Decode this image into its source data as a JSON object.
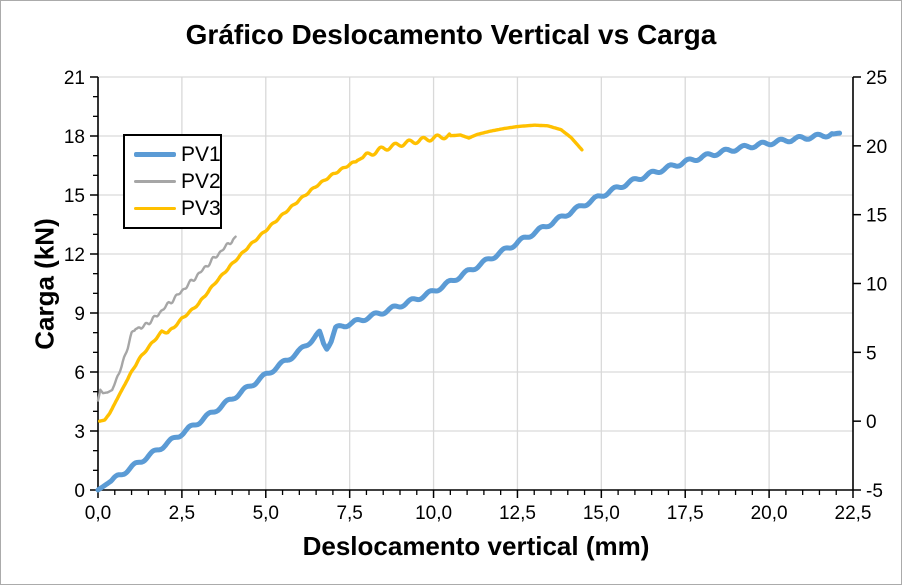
{
  "chart_data": {
    "type": "line",
    "title": "Gráfico Deslocamento Vertical vs Carga",
    "xlabel": "Deslocamento vertical (mm)",
    "ylabel": "Carga (kN)",
    "grid": true,
    "legend_position": "upper-left-inside",
    "colors": {
      "background": "#FFFFFF",
      "grid": "#D9D9D9",
      "axis": "#000000",
      "text": "#000000",
      "chart_border": "#ABABAB"
    },
    "x_axis": {
      "min": 0,
      "max": 22.5,
      "major": 2.5,
      "minor": 0.5,
      "tick_labels": [
        "0,0",
        "2,5",
        "5,0",
        "7,5",
        "10,0",
        "12,5",
        "15,0",
        "17,5",
        "20,0",
        "22,5"
      ]
    },
    "y_axis_left": {
      "min": 0,
      "max": 21,
      "major": 3,
      "minor": 1,
      "tick_labels": [
        "0",
        "3",
        "6",
        "9",
        "12",
        "15",
        "18",
        "21"
      ]
    },
    "y_axis_right": {
      "min": -5,
      "max": 25,
      "major": 5,
      "tick_labels": [
        "-5",
        "0",
        "5",
        "10",
        "15",
        "20",
        "25"
      ]
    },
    "series": [
      {
        "name": "PV1",
        "color": "#5B9BD5",
        "width": 5,
        "points": [
          [
            0,
            0
          ],
          [
            0.5,
            0.58
          ],
          [
            1,
            1.15
          ],
          [
            1.5,
            1.72
          ],
          [
            2,
            2.3
          ],
          [
            2.5,
            2.88
          ],
          [
            3,
            3.45
          ],
          [
            3.5,
            4.05
          ],
          [
            4,
            4.65
          ],
          [
            4.5,
            5.25
          ],
          [
            5,
            5.85
          ],
          [
            5.5,
            6.45
          ],
          [
            6,
            7.05
          ],
          [
            6.35,
            7.6
          ],
          [
            6.6,
            7.98
          ],
          [
            6.72,
            7.45
          ],
          [
            6.82,
            7.25
          ],
          [
            6.95,
            7.6
          ],
          [
            7.08,
            8.2
          ],
          [
            7.3,
            8.35
          ],
          [
            7.6,
            8.5
          ],
          [
            8,
            8.75
          ],
          [
            8.5,
            9.05
          ],
          [
            9,
            9.38
          ],
          [
            9.5,
            9.72
          ],
          [
            10,
            10.1
          ],
          [
            10.5,
            10.58
          ],
          [
            11,
            11.08
          ],
          [
            11.5,
            11.58
          ],
          [
            12,
            12.08
          ],
          [
            12.5,
            12.58
          ],
          [
            13,
            13.08
          ],
          [
            13.5,
            13.56
          ],
          [
            14,
            14.05
          ],
          [
            14.5,
            14.52
          ],
          [
            15,
            14.97
          ],
          [
            15.5,
            15.38
          ],
          [
            16,
            15.76
          ],
          [
            16.5,
            16.1
          ],
          [
            17,
            16.4
          ],
          [
            17.5,
            16.68
          ],
          [
            18,
            16.93
          ],
          [
            18.5,
            17.15
          ],
          [
            19,
            17.34
          ],
          [
            19.5,
            17.5
          ],
          [
            20,
            17.64
          ],
          [
            20.5,
            17.78
          ],
          [
            21,
            17.9
          ],
          [
            21.5,
            18.0
          ],
          [
            22.1,
            18.15
          ]
        ],
        "ripples": [
          {
            "amp": 0.1,
            "period": 0.55,
            "from": 0.4,
            "to": 21.9
          }
        ]
      },
      {
        "name": "PV2",
        "color": "#A6A6A6",
        "width": 2.4,
        "points": [
          [
            0,
            4.55
          ],
          [
            0.07,
            5.1
          ],
          [
            0.15,
            4.92
          ],
          [
            0.28,
            4.96
          ],
          [
            0.42,
            5.08
          ],
          [
            0.55,
            5.6
          ],
          [
            0.7,
            6.3
          ],
          [
            0.85,
            7.05
          ],
          [
            1,
            7.9
          ],
          [
            1.12,
            8.28
          ],
          [
            1.28,
            8.2
          ],
          [
            1.42,
            8.42
          ],
          [
            1.6,
            8.62
          ],
          [
            1.8,
            8.95
          ],
          [
            2,
            9.3
          ],
          [
            2.25,
            9.7
          ],
          [
            2.5,
            10.12
          ],
          [
            2.75,
            10.55
          ],
          [
            3,
            10.98
          ],
          [
            3.25,
            11.42
          ],
          [
            3.5,
            11.85
          ],
          [
            3.75,
            12.28
          ],
          [
            3.95,
            12.62
          ],
          [
            4.1,
            12.88
          ]
        ],
        "ripples": [
          {
            "amp": 0.07,
            "period": 0.22,
            "from": 0.5,
            "to": 4.05
          },
          {
            "amp": 0.05,
            "period": 0.35,
            "from": 0.9,
            "to": 4.05
          }
        ]
      },
      {
        "name": "PV3",
        "color": "#FFC000",
        "width": 3.4,
        "points": [
          [
            0.05,
            3.5
          ],
          [
            0.2,
            3.56
          ],
          [
            0.35,
            3.9
          ],
          [
            0.5,
            4.4
          ],
          [
            0.7,
            5.05
          ],
          [
            0.85,
            5.52
          ],
          [
            1,
            6
          ],
          [
            1.2,
            6.6
          ],
          [
            1.45,
            7.15
          ],
          [
            1.7,
            7.65
          ],
          [
            1.9,
            8.05
          ],
          [
            2.08,
            8.02
          ],
          [
            2.25,
            8.25
          ],
          [
            2.5,
            8.72
          ],
          [
            2.75,
            9.08
          ],
          [
            3,
            9.48
          ],
          [
            3.5,
            10.55
          ],
          [
            4,
            11.5
          ],
          [
            4.5,
            12.4
          ],
          [
            5,
            13.2
          ],
          [
            5.5,
            14
          ],
          [
            6,
            14.75
          ],
          [
            6.5,
            15.45
          ],
          [
            7,
            16.05
          ],
          [
            7.5,
            16.55
          ],
          [
            8,
            17
          ],
          [
            8.4,
            17.3
          ],
          [
            9,
            17.58
          ],
          [
            9.5,
            17.75
          ],
          [
            10,
            17.9
          ],
          [
            10.4,
            18
          ],
          [
            10.8,
            18.05
          ],
          [
            11.05,
            17.9
          ],
          [
            11.3,
            18.08
          ],
          [
            11.7,
            18.25
          ],
          [
            12.1,
            18.38
          ],
          [
            12.5,
            18.48
          ],
          [
            13,
            18.55
          ],
          [
            13.4,
            18.52
          ],
          [
            13.8,
            18.32
          ],
          [
            14.1,
            17.92
          ],
          [
            14.42,
            17.3
          ]
        ],
        "ripples": [
          {
            "amp": 0.04,
            "period": 0.3,
            "from": 0.9,
            "to": 7.7
          },
          {
            "amp": 0.12,
            "period": 0.42,
            "from": 7.9,
            "to": 10.5
          }
        ]
      }
    ]
  }
}
